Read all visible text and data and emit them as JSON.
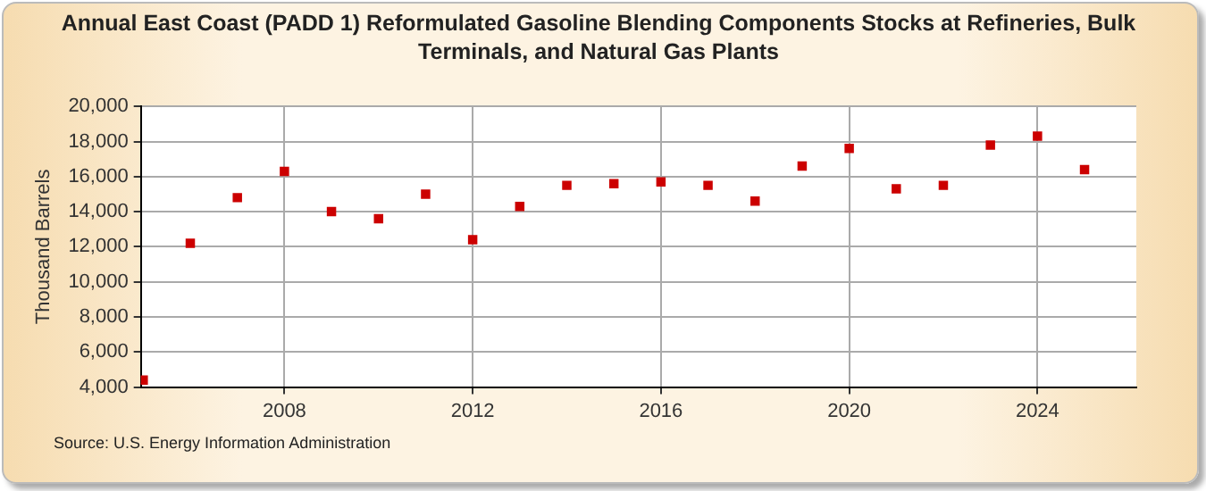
{
  "chart_data": {
    "type": "scatter",
    "title": "Annual East Coast (PADD 1) Reformulated Gasoline Blending Components Stocks at Refineries, Bulk Terminals, and Natural Gas Plants",
    "ylabel": "Thousand Barrels",
    "annotations": [
      "Source: U.S. Energy Information Administration"
    ],
    "x": [
      2005,
      2006,
      2007,
      2008,
      2009,
      2010,
      2011,
      2012,
      2013,
      2014,
      2015,
      2016,
      2017,
      2018,
      2019,
      2020,
      2021,
      2022,
      2023,
      2024,
      2025
    ],
    "series": [
      {
        "color": "#cc0000",
        "values": [
          4400,
          12200,
          14800,
          16300,
          14000,
          13600,
          15000,
          12400,
          14300,
          15500,
          15600,
          15700,
          15500,
          14600,
          16600,
          17600,
          15300,
          15500,
          17800,
          18300,
          16400
        ]
      }
    ],
    "xlim": [
      2004.95,
      2026.1
    ],
    "xticks": [
      2008,
      2012,
      2016,
      2020,
      2024
    ],
    "ylim": [
      4000,
      20000
    ],
    "yticks": [
      {
        "value": 4000,
        "label": "4,000"
      },
      {
        "value": 6000,
        "label": "6,000"
      },
      {
        "value": 8000,
        "label": "8,000"
      },
      {
        "value": 10000,
        "label": "10,000"
      },
      {
        "value": 12000,
        "label": "12,000"
      },
      {
        "value": 14000,
        "label": "14,000"
      },
      {
        "value": 16000,
        "label": "16,000"
      },
      {
        "value": 18000,
        "label": "18,000"
      },
      {
        "value": 20000,
        "label": "20,000"
      }
    ],
    "grid": true,
    "legend": false,
    "marker": "square"
  }
}
